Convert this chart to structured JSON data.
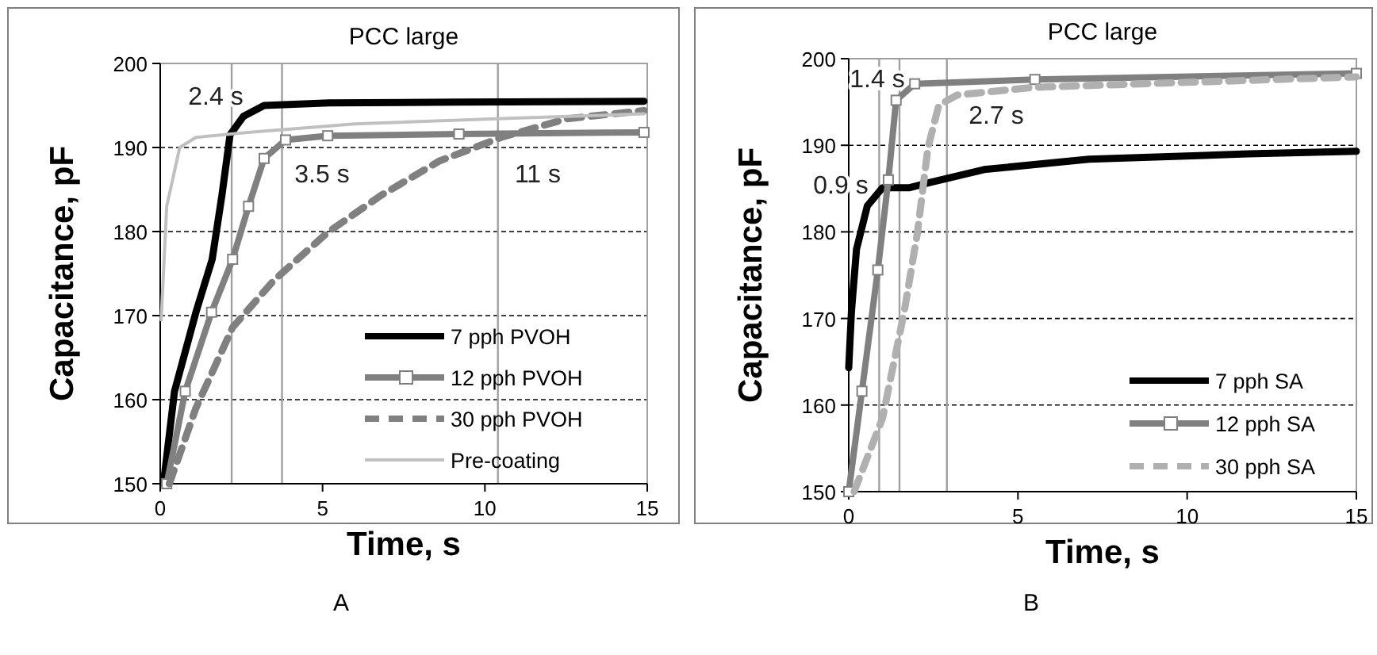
{
  "chart_data": [
    {
      "type": "line",
      "title": "PCC large",
      "xlabel": "Time, s",
      "ylabel": "Capacitance, pF",
      "xlim": [
        0,
        15
      ],
      "xticks": [
        0,
        5,
        10,
        15
      ],
      "ylim": [
        150,
        200
      ],
      "yticks": [
        150,
        160,
        170,
        180,
        190,
        200
      ],
      "grid": "y",
      "legend": "bottom right",
      "series": [
        {
          "name": "7 pph PVOH",
          "color": "#000000",
          "line_style": "solid",
          "marker": "none",
          "x": [
            0.1,
            0.44,
            1.1,
            1.6,
            1.9,
            2.15,
            2.56,
            3.2,
            5.2,
            9.2,
            14.9
          ],
          "values": [
            150,
            161,
            170.4,
            176.7,
            184.3,
            191.5,
            193.7,
            195,
            195.3,
            195.4,
            195.5
          ]
        },
        {
          "name": "12 pph PVOH",
          "color": "#808080",
          "line_style": "solid",
          "marker": "square",
          "x": [
            0.2,
            0.77,
            1.58,
            2.23,
            2.72,
            3.2,
            3.86,
            5.16,
            9.2,
            14.9
          ],
          "values": [
            150,
            161,
            170.4,
            176.7,
            183,
            188.7,
            190.9,
            191.4,
            191.6,
            191.8
          ]
        },
        {
          "name": "30 pph PVOH",
          "color": "#808080",
          "line_style": "dashed",
          "marker": "none",
          "x": [
            0.28,
            1.1,
            2.23,
            3.5,
            5.16,
            6.8,
            8.6,
            10.5,
            12.5,
            14.9
          ],
          "values": [
            150,
            159,
            168.6,
            174.2,
            179.9,
            184.3,
            188.4,
            191.2,
            193.4,
            194.4
          ]
        },
        {
          "name": "Pre-coating",
          "color": "#c0c0c0",
          "line_style": "solid",
          "marker": "none",
          "x": [
            0.03,
            0.2,
            0.6,
            1.1,
            2.7,
            6,
            10.9,
            14.9
          ],
          "values": [
            169.5,
            183,
            190,
            191.2,
            191.8,
            192.8,
            193.5,
            194
          ]
        }
      ],
      "ref_lines": [
        {
          "axis": "x",
          "value": 2.2,
          "color": "#a0a0a0"
        },
        {
          "axis": "x",
          "value": 3.75,
          "color": "#a0a0a0"
        },
        {
          "axis": "x",
          "value": 10.4,
          "color": "#a0a0a0"
        }
      ],
      "annotations": [
        "2.4 s",
        "3.5 s",
        "11 s",
        "A"
      ]
    },
    {
      "type": "line",
      "title": "PCC large",
      "xlabel": "Time, s",
      "ylabel": "Capacitance, pF",
      "xlim": [
        0,
        15
      ],
      "xticks": [
        0,
        5,
        10,
        15
      ],
      "ylim": [
        150,
        200
      ],
      "yticks": [
        150,
        160,
        170,
        180,
        190,
        200
      ],
      "grid": "y",
      "legend": "bottom right",
      "series": [
        {
          "name": "7 pph SA",
          "color": "#000000",
          "line_style": "solid",
          "marker": "none",
          "x": [
            0,
            0.08,
            0.23,
            0.55,
            1.0,
            1.8,
            2.4,
            4.0,
            7.1,
            11.8,
            15
          ],
          "values": [
            164.3,
            170.8,
            178,
            183,
            185.1,
            185.1,
            185.7,
            187.2,
            188.4,
            189,
            189.3
          ]
        },
        {
          "name": "12 pph SA",
          "color": "#808080",
          "line_style": "solid",
          "marker": "square",
          "x": [
            0,
            0.39,
            0.86,
            1.17,
            1.4,
            1.95,
            5.5,
            15
          ],
          "values": [
            150,
            161.6,
            175.6,
            186,
            195.2,
            197.1,
            197.6,
            198.3
          ]
        },
        {
          "name": "30 pph SA",
          "color": "#b0b0b0",
          "line_style": "dashed",
          "marker": "none",
          "x": [
            0.16,
            1.0,
            1.64,
            2.03,
            2.34,
            2.66,
            3.2,
            5.5,
            15
          ],
          "values": [
            150,
            158.5,
            170.8,
            179.9,
            189.7,
            194.6,
            195.8,
            196.7,
            197.9
          ]
        }
      ],
      "ref_lines": [
        {
          "axis": "x",
          "value": 0.9,
          "color": "#a0a0a0"
        },
        {
          "axis": "x",
          "value": 1.5,
          "color": "#a0a0a0"
        },
        {
          "axis": "x",
          "value": 2.9,
          "color": "#a0a0a0"
        }
      ],
      "annotations": [
        "1.4 s",
        "2.7 s",
        "0.9 s",
        "B"
      ]
    }
  ]
}
